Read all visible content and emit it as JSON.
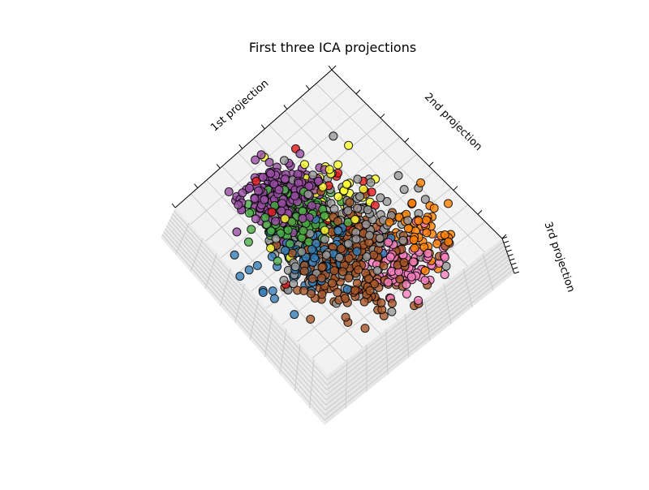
{
  "chart_data": {
    "type": "scatter",
    "projection": "3d",
    "title": "First three ICA projections",
    "axes": {
      "x": {
        "label": "1st projection",
        "tick_labels": "hidden"
      },
      "y": {
        "label": "2nd projection",
        "tick_labels": "hidden"
      },
      "z": {
        "label": "3rd projection",
        "tick_labels": "hidden"
      }
    },
    "grid": true,
    "legend": "none",
    "marker": {
      "shape": "circle",
      "edgecolor": "#000000",
      "alpha": 0.8
    },
    "series": [
      {
        "color": "#984ea3",
        "count": 260
      },
      {
        "color": "#4daf4a",
        "count": 170
      },
      {
        "color": "#377eb8",
        "count": 110
      },
      {
        "color": "#999999",
        "count": 200
      },
      {
        "color": "#a65628",
        "count": 260
      },
      {
        "color": "#f781bf",
        "count": 90
      },
      {
        "color": "#ff7f00",
        "count": 45
      },
      {
        "color": "#ffff33",
        "count": 45
      },
      {
        "color": "#e41a1c",
        "count": 25
      }
    ]
  }
}
